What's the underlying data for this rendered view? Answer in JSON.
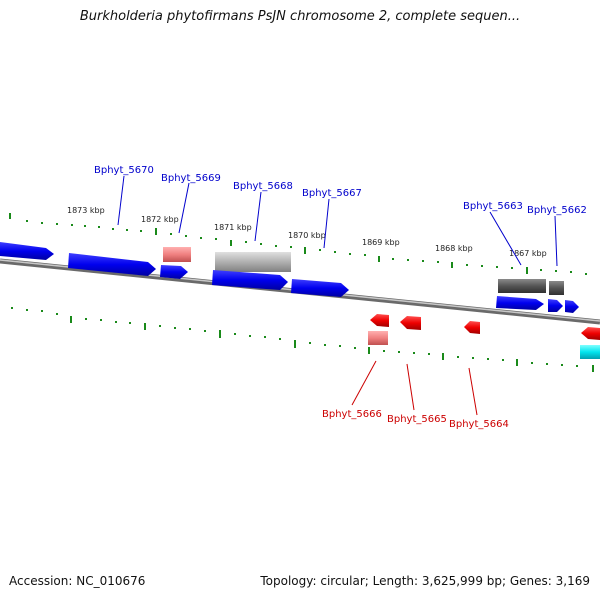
{
  "title": "Burkholderia phytofirmans PsJN chromosome 2, complete sequen...",
  "footer": {
    "accession": "Accession: NC_010676",
    "summary": "Topology: circular; Length: 3,625,999 bp; Genes: 3,169"
  },
  "scale_labels": [
    "1873 kbp",
    "1872 kbp",
    "1871 kbp",
    "1870 kbp",
    "1869 kbp",
    "1868 kbp",
    "1867 kbp"
  ],
  "forward_genes": [
    "Bphyt_5670",
    "Bphyt_5669",
    "Bphyt_5668",
    "Bphyt_5667",
    "Bphyt_5663",
    "Bphyt_5662"
  ],
  "reverse_genes": [
    "Bphyt_5666",
    "Bphyt_5665",
    "Bphyt_5664"
  ],
  "colors": {
    "forward_label": "#0000cc",
    "reverse_label": "#cc0000",
    "forward_cds": "#0000ee",
    "reverse_cds": "#ee0000",
    "pseudo_light_red": "#f08080",
    "gray_gene": "#a8a8a8",
    "dark_gray_gene": "#555555",
    "cyan_gene": "#00e5ee",
    "tick": "#1a8a1a",
    "backbone": "#808080"
  }
}
